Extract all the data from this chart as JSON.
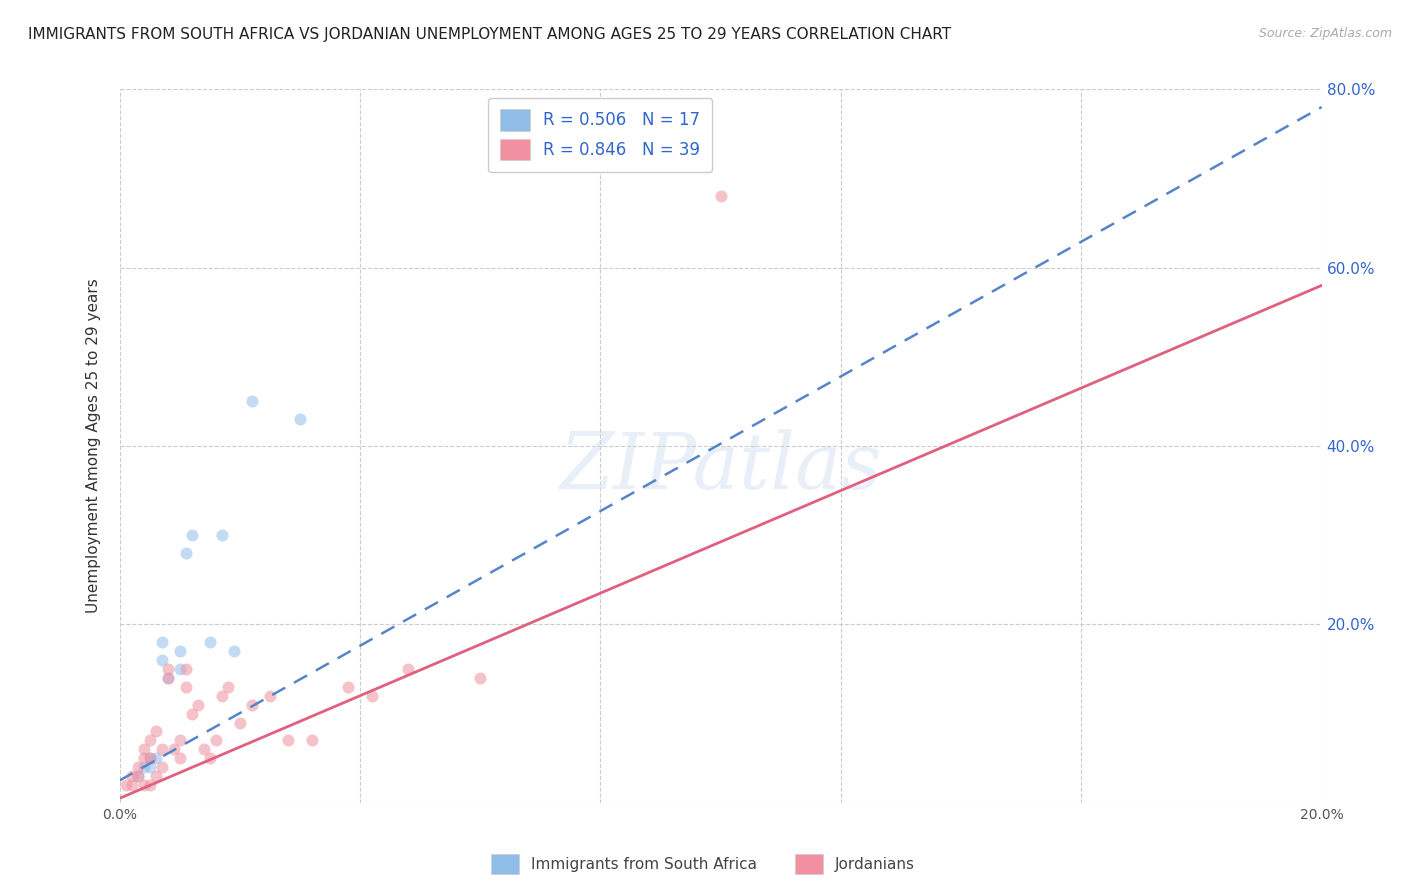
{
  "title": "IMMIGRANTS FROM SOUTH AFRICA VS JORDANIAN UNEMPLOYMENT AMONG AGES 25 TO 29 YEARS CORRELATION CHART",
  "source": "Source: ZipAtlas.com",
  "ylabel": "Unemployment Among Ages 25 to 29 years",
  "xlim": [
    0.0,
    0.2
  ],
  "ylim": [
    0.0,
    0.8
  ],
  "x_ticks": [
    0.0,
    0.04,
    0.08,
    0.12,
    0.16,
    0.2
  ],
  "y_ticks": [
    0.0,
    0.2,
    0.4,
    0.6,
    0.8
  ],
  "y_tick_labels_right": [
    "",
    "20.0%",
    "40.0%",
    "60.0%",
    "80.0%"
  ],
  "legend_entries": [
    {
      "label": "R = 0.506   N = 17",
      "color": "#aec6f0"
    },
    {
      "label": "R = 0.846   N = 39",
      "color": "#f4a7b9"
    }
  ],
  "legend_label_color": "#3366cc",
  "watermark_text": "ZIPatlas",
  "blue_scatter_x": [
    0.003,
    0.004,
    0.005,
    0.005,
    0.006,
    0.007,
    0.007,
    0.008,
    0.01,
    0.01,
    0.011,
    0.012,
    0.015,
    0.017,
    0.019,
    0.022,
    0.03
  ],
  "blue_scatter_y": [
    0.03,
    0.04,
    0.04,
    0.05,
    0.05,
    0.16,
    0.18,
    0.14,
    0.15,
    0.17,
    0.28,
    0.3,
    0.18,
    0.3,
    0.17,
    0.45,
    0.43
  ],
  "pink_scatter_x": [
    0.001,
    0.002,
    0.002,
    0.003,
    0.003,
    0.004,
    0.004,
    0.004,
    0.005,
    0.005,
    0.005,
    0.006,
    0.006,
    0.007,
    0.007,
    0.008,
    0.008,
    0.009,
    0.01,
    0.01,
    0.011,
    0.011,
    0.012,
    0.013,
    0.014,
    0.015,
    0.016,
    0.017,
    0.018,
    0.02,
    0.022,
    0.025,
    0.028,
    0.032,
    0.038,
    0.042,
    0.048,
    0.06,
    0.1
  ],
  "pink_scatter_y": [
    0.02,
    0.02,
    0.03,
    0.03,
    0.04,
    0.02,
    0.05,
    0.06,
    0.02,
    0.05,
    0.07,
    0.03,
    0.08,
    0.04,
    0.06,
    0.14,
    0.15,
    0.06,
    0.05,
    0.07,
    0.13,
    0.15,
    0.1,
    0.11,
    0.06,
    0.05,
    0.07,
    0.12,
    0.13,
    0.09,
    0.11,
    0.12,
    0.07,
    0.07,
    0.13,
    0.12,
    0.15,
    0.14,
    0.68
  ],
  "blue_line_x0": 0.0,
  "blue_line_y0": 0.025,
  "blue_line_x1": 0.2,
  "blue_line_y1": 0.78,
  "pink_line_x0": 0.0,
  "pink_line_y0": 0.005,
  "pink_line_x1": 0.2,
  "pink_line_y1": 0.58,
  "blue_line_color": "#5585c8",
  "pink_line_color": "#e06080",
  "blue_dot_color": "#90bce8",
  "pink_dot_color": "#f090a0",
  "dot_size": 75,
  "dot_alpha": 0.55,
  "background_color": "#ffffff",
  "grid_color": "#cccccc",
  "right_axis_color": "#3366cc",
  "title_fontsize": 11,
  "axis_label_fontsize": 11,
  "bottom_legend_labels": [
    "Immigrants from South Africa",
    "Jordanians"
  ]
}
